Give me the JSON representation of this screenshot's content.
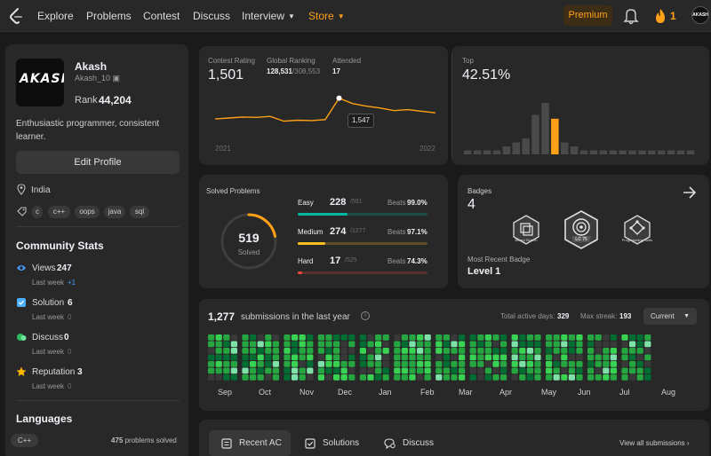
{
  "nav": {
    "items": [
      {
        "label": "Explore"
      },
      {
        "label": "Problems"
      },
      {
        "label": "Contest"
      },
      {
        "label": "Discuss"
      },
      {
        "label": "Interview"
      },
      {
        "label": "Store"
      }
    ],
    "premium": "Premium",
    "streak": "1",
    "avatar_text": "AKASH",
    "accent": "#ffa116"
  },
  "profile": {
    "avatar_text": "AKASH",
    "name": "Akash",
    "username": "Akash_10",
    "rank_label": "Rank",
    "rank_value": "44,204",
    "bio": "Enthusiastic programmer, consistent learner.",
    "edit_label": "Edit Profile",
    "location": "India",
    "skills": [
      "c",
      "c++",
      "oops",
      "java",
      "sql"
    ]
  },
  "community": {
    "title": "Community Stats",
    "items": [
      {
        "label": "Views",
        "value": "247",
        "sub": "Last week",
        "sub_value": "+1"
      },
      {
        "label": "Solution",
        "value": "6",
        "sub": "Last week",
        "sub_value": "0"
      },
      {
        "label": "Discuss",
        "value": "0",
        "sub": "Last week",
        "sub_value": "0"
      },
      {
        "label": "Reputation",
        "value": "3",
        "sub": "Last week",
        "sub_value": "0"
      }
    ]
  },
  "languages": {
    "title": "Languages",
    "lang": "C++",
    "count_value": "475",
    "count_text": "problems solved"
  },
  "contest": {
    "rating_label": "Contest Rating",
    "rating": "1,501",
    "global_label": "Global Ranking",
    "global": "128,531",
    "global_total": "/308,553",
    "attended_label": "Attended",
    "attended": "17",
    "year_start": "2021",
    "year_end": "2022",
    "tooltip": "1,547",
    "top_label": "Top",
    "top_value": "42.51%"
  },
  "chart_data": [
    {
      "type": "line",
      "title": "Contest Rating",
      "x": [
        "2021",
        "",
        "",
        "",
        "",
        "",
        "",
        "",
        "",
        "",
        "",
        "",
        "",
        "",
        "",
        "",
        "2022"
      ],
      "series": [
        {
          "values": [
            1482,
            1485,
            1488,
            1487,
            1490,
            1475,
            1478,
            1477,
            1480,
            1547,
            1530,
            1522,
            1516,
            1508,
            1511,
            1506,
            1501
          ]
        }
      ],
      "highlight": {
        "index": 9,
        "value": 1547
      },
      "xlabel": "",
      "ylabel": ""
    },
    {
      "type": "bar",
      "title": "Top",
      "values": [
        1,
        1,
        1,
        1,
        2,
        3,
        4,
        10,
        13,
        9,
        3,
        2,
        1,
        1,
        1,
        1,
        1,
        1,
        1,
        1,
        1,
        1,
        1,
        1
      ],
      "highlight_index": 9
    }
  ],
  "solved": {
    "title": "Solved Problems",
    "total": "519",
    "total_label": "Solved",
    "levels": [
      {
        "name": "Easy",
        "value": "228",
        "total": "/591",
        "beats_label": "Beats",
        "beats": "99.0%",
        "color": "#00b8a3",
        "fraction": 0.386
      },
      {
        "name": "Medium",
        "value": "274",
        "total": "/1277",
        "beats_label": "Beats",
        "beats": "97.1%",
        "color": "#ffc01e",
        "fraction": 0.215
      },
      {
        "name": "Hard",
        "value": "17",
        "total": "/525",
        "beats_label": "Beats",
        "beats": "74.3%",
        "color": "#ef4743",
        "fraction": 0.032
      }
    ],
    "ring_fraction": 0.22
  },
  "badges": {
    "title": "Badges",
    "count": "4",
    "items": [
      {
        "label": "Binary Search",
        "icon": "binary-search-icon"
      },
      {
        "label": "LC 75",
        "icon": "lc75-icon"
      },
      {
        "label": "Programming Skills",
        "icon": "programming-skills-icon"
      }
    ],
    "recent_label": "Most Recent Badge",
    "recent_value": "Level 1"
  },
  "submissions": {
    "count": "1,277",
    "text": "submissions in the last year",
    "active_label": "Total active days:",
    "active_value": "329",
    "streak_label": "Max streak:",
    "streak_value": "193",
    "dropdown": "Current",
    "months": [
      "Sep",
      "Oct",
      "Nov",
      "Dec",
      "Jan",
      "Feb",
      "Mar",
      "Apr",
      "May",
      "Jun",
      "Jul",
      "Aug"
    ],
    "heat_colors": [
      "#393939",
      "#0e4429",
      "#006d32",
      "#26a641",
      "#39d353",
      "#7ee2a8"
    ]
  },
  "tabs": {
    "items": [
      {
        "label": "Recent AC"
      },
      {
        "label": "Solutions"
      },
      {
        "label": "Discuss"
      }
    ],
    "view_all": "View all submissions"
  }
}
